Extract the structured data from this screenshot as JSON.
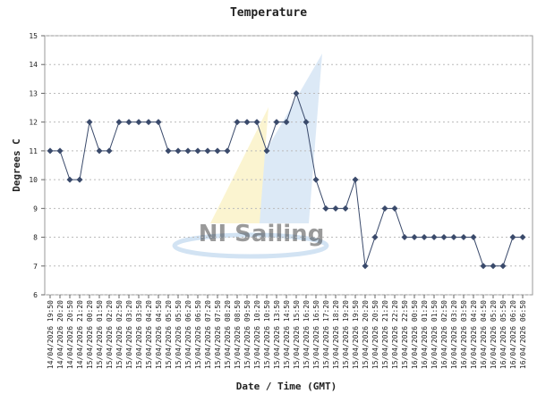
{
  "chart_data": {
    "type": "line",
    "title": "Temperature",
    "xlabel": "Date / Time (GMT)",
    "ylabel": "Degrees C",
    "watermark": "NI Sailing",
    "categories": [
      "14/04/2026 19:50",
      "14/04/2026 20:20",
      "14/04/2026 20:50",
      "14/04/2026 21:20",
      "15/04/2026 00:20",
      "15/04/2026 01:50",
      "15/04/2026 02:20",
      "15/04/2026 02:50",
      "15/04/2026 03:20",
      "15/04/2026 03:50",
      "15/04/2026 04:20",
      "15/04/2026 04:50",
      "15/04/2026 05:20",
      "15/04/2026 05:50",
      "15/04/2026 06:20",
      "15/04/2026 06:50",
      "15/04/2026 07:20",
      "15/04/2026 07:50",
      "15/04/2026 08:20",
      "15/04/2026 08:50",
      "15/04/2026 09:50",
      "15/04/2026 10:20",
      "15/04/2026 10:50",
      "15/04/2026 13:50",
      "15/04/2026 14:50",
      "15/04/2026 15:50",
      "15/04/2026 16:20",
      "15/04/2026 16:50",
      "15/04/2026 17:20",
      "15/04/2026 18:20",
      "15/04/2026 19:20",
      "15/04/2026 19:50",
      "15/04/2026 20:20",
      "15/04/2026 20:50",
      "15/04/2026 21:20",
      "15/04/2026 22:20",
      "15/04/2026 22:50",
      "16/04/2026 00:50",
      "16/04/2026 01:20",
      "16/04/2026 01:50",
      "16/04/2026 02:50",
      "16/04/2026 03:20",
      "16/04/2026 03:50",
      "16/04/2026 04:20",
      "16/04/2026 04:50",
      "16/04/2026 05:20",
      "16/04/2026 05:50",
      "16/04/2026 06:20",
      "16/04/2026 06:50"
    ],
    "series": [
      {
        "name": "Temperature",
        "color": "#3a4a6b",
        "values": [
          11,
          11,
          10,
          10,
          12,
          11,
          11,
          12,
          12,
          12,
          12,
          12,
          11,
          11,
          11,
          11,
          11,
          11,
          11,
          12,
          12,
          12,
          11,
          12,
          12,
          13,
          12,
          10,
          9,
          9,
          9,
          10,
          7,
          8,
          9,
          9,
          8,
          8,
          8,
          8,
          8,
          8,
          8,
          8,
          7,
          7,
          7,
          8,
          8
        ]
      }
    ],
    "ylim": [
      6,
      15
    ],
    "yticks": [
      6,
      7,
      8,
      9,
      10,
      11,
      12,
      13,
      14,
      15
    ],
    "grid": true
  }
}
